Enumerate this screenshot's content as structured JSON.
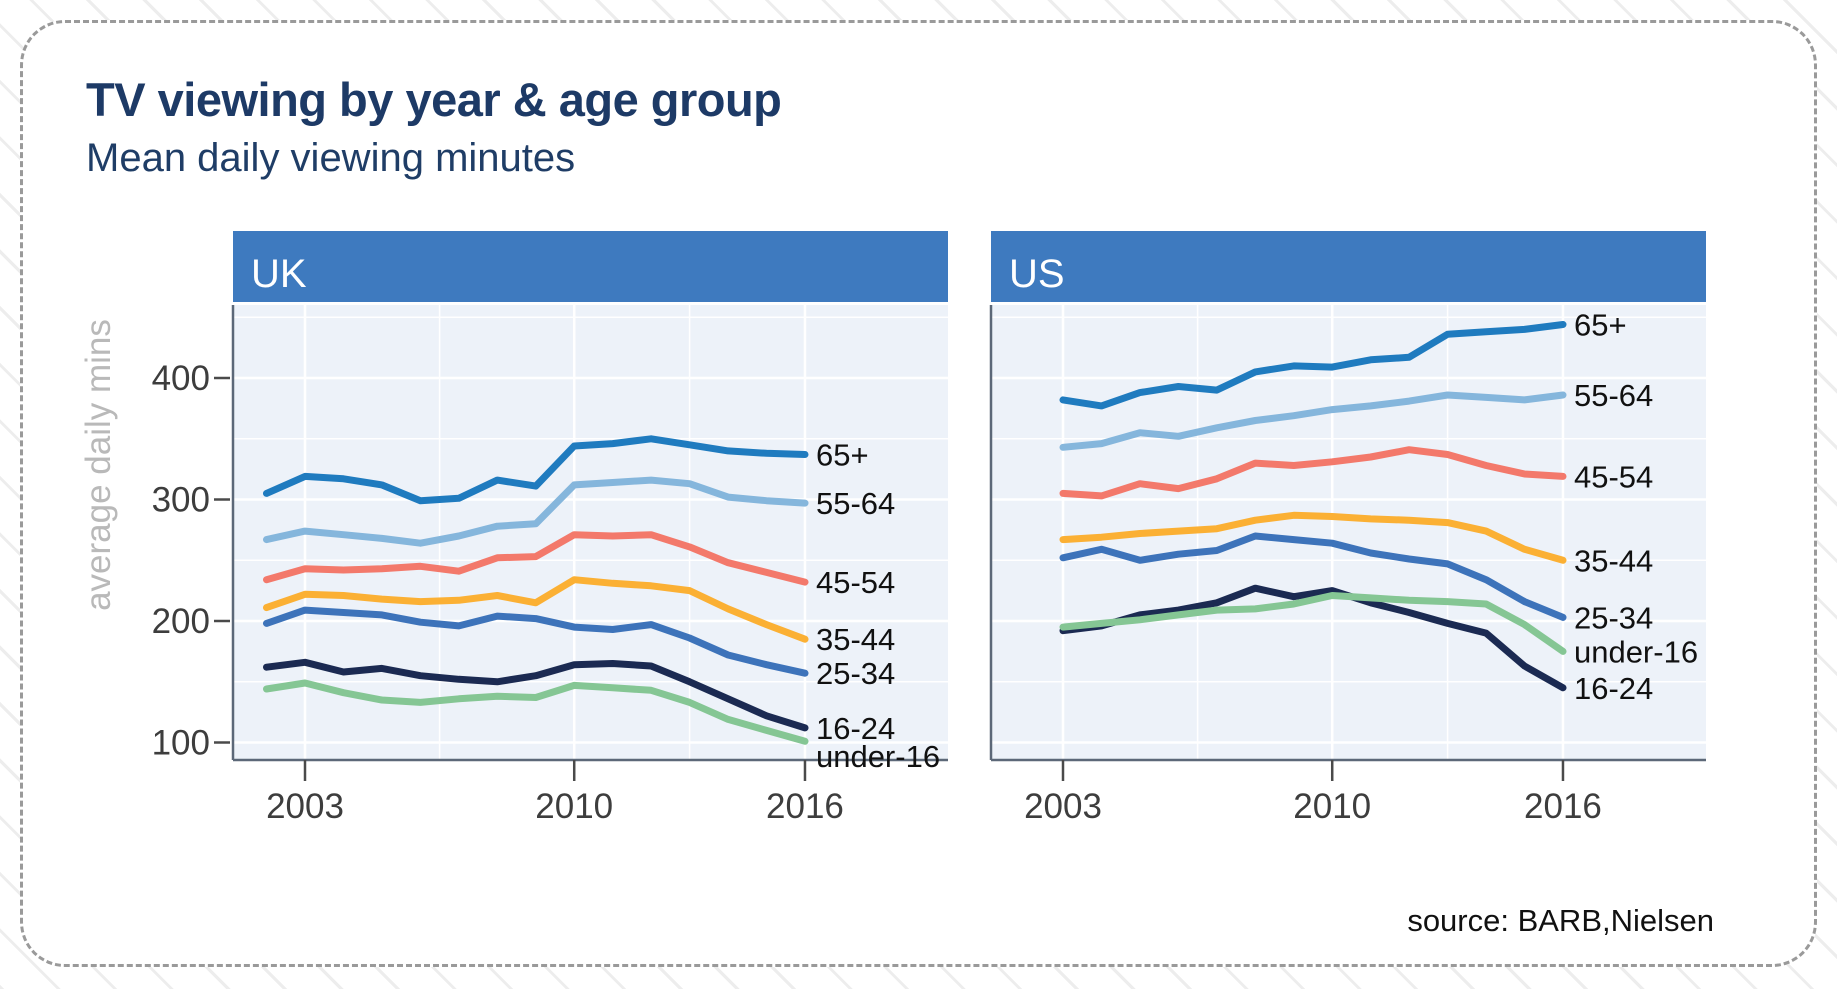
{
  "page": {
    "title": "TV viewing by year & age group",
    "subtitle": "Mean daily viewing minutes",
    "y_axis_label": "average daily mins",
    "source": "source: BARB,Nielsen"
  },
  "chart_data": {
    "type": "line",
    "title": "TV viewing by year & age group",
    "subtitle": "Mean daily viewing minutes",
    "ylabel": "average daily mins",
    "xlabel": "",
    "source": "source: BARB,Nielsen",
    "x_ticks": [
      2003,
      2010,
      2016
    ],
    "y_ticks": [
      400,
      300,
      200,
      100
    ],
    "ylim": [
      86,
      460
    ],
    "grid": {
      "h_step": 50,
      "v_years": [
        2003,
        2006.5,
        2010,
        2013,
        2016
      ],
      "color": "#ffffff"
    },
    "legend_position": "end-of-line-labels",
    "panel_header_color": "#3e7abf",
    "panel_label_color": "#ffffff",
    "plot_bg_color": "#edf2f9",
    "axis_line_color": "#5c6878",
    "tick_text_color": "#3d3d3d",
    "series_label_color": "#111111",
    "colors": {
      "65+": "#1f7bbf",
      "55-64": "#85b6dc",
      "45-54": "#f3796b",
      "35-44": "#fbb034",
      "25-34": "#3d73ba",
      "16-24": "#1b2a52",
      "under-16": "#85c694"
    },
    "panels": [
      {
        "label": "UK",
        "years": [
          2002,
          2003,
          2004,
          2005,
          2006,
          2007,
          2008,
          2009,
          2010,
          2011,
          2012,
          2013,
          2014,
          2015,
          2016
        ],
        "series": [
          {
            "name": "65+",
            "values": [
              305,
              319,
              317,
              312,
              299,
              301,
              316,
              311,
              344,
              346,
              350,
              345,
              340,
              338,
              337
            ]
          },
          {
            "name": "55-64",
            "values": [
              267,
              274,
              271,
              268,
              264,
              270,
              278,
              280,
              312,
              314,
              316,
              313,
              302,
              299,
              297
            ]
          },
          {
            "name": "45-54",
            "values": [
              234,
              243,
              242,
              243,
              245,
              241,
              252,
              253,
              271,
              270,
              271,
              261,
              248,
              240,
              232
            ]
          },
          {
            "name": "35-44",
            "values": [
              211,
              222,
              221,
              218,
              216,
              217,
              221,
              215,
              234,
              231,
              229,
              225,
              210,
              197,
              185
            ]
          },
          {
            "name": "25-34",
            "values": [
              198,
              209,
              207,
              205,
              199,
              196,
              204,
              202,
              195,
              193,
              197,
              186,
              172,
              164,
              157
            ]
          },
          {
            "name": "16-24",
            "values": [
              162,
              166,
              158,
              161,
              155,
              152,
              150,
              155,
              164,
              165,
              163,
              150,
              136,
              122,
              112
            ]
          },
          {
            "name": "under-16",
            "values": [
              144,
              149,
              141,
              135,
              133,
              136,
              138,
              137,
              147,
              145,
              143,
              133,
              119,
              110,
              101
            ]
          }
        ]
      },
      {
        "label": "US",
        "years": [
          2003,
          2004,
          2005,
          2006,
          2007,
          2008,
          2009,
          2010,
          2011,
          2012,
          2013,
          2014,
          2015,
          2016
        ],
        "series": [
          {
            "name": "65+",
            "values": [
              382,
              377,
              388,
              393,
              390,
              405,
              410,
              409,
              415,
              417,
              436,
              438,
              440,
              444
            ]
          },
          {
            "name": "55-64",
            "values": [
              343,
              346,
              355,
              352,
              359,
              365,
              369,
              374,
              377,
              381,
              386,
              384,
              382,
              386
            ]
          },
          {
            "name": "45-54",
            "values": [
              305,
              303,
              313,
              309,
              317,
              330,
              328,
              331,
              335,
              341,
              337,
              328,
              321,
              319
            ]
          },
          {
            "name": "35-44",
            "values": [
              267,
              269,
              272,
              274,
              276,
              283,
              287,
              286,
              284,
              283,
              281,
              274,
              259,
              250
            ]
          },
          {
            "name": "25-34",
            "values": [
              252,
              259,
              250,
              255,
              258,
              270,
              267,
              264,
              256,
              251,
              247,
              234,
              216,
              203
            ]
          },
          {
            "name": "16-24",
            "values": [
              192,
              196,
              205,
              209,
              215,
              227,
              220,
              225,
              215,
              207,
              198,
              190,
              163,
              145
            ]
          },
          {
            "name": "under-16",
            "values": [
              195,
              198,
              201,
              205,
              209,
              210,
              214,
              221,
              219,
              217,
              216,
              214,
              197,
              175
            ]
          }
        ]
      }
    ]
  }
}
